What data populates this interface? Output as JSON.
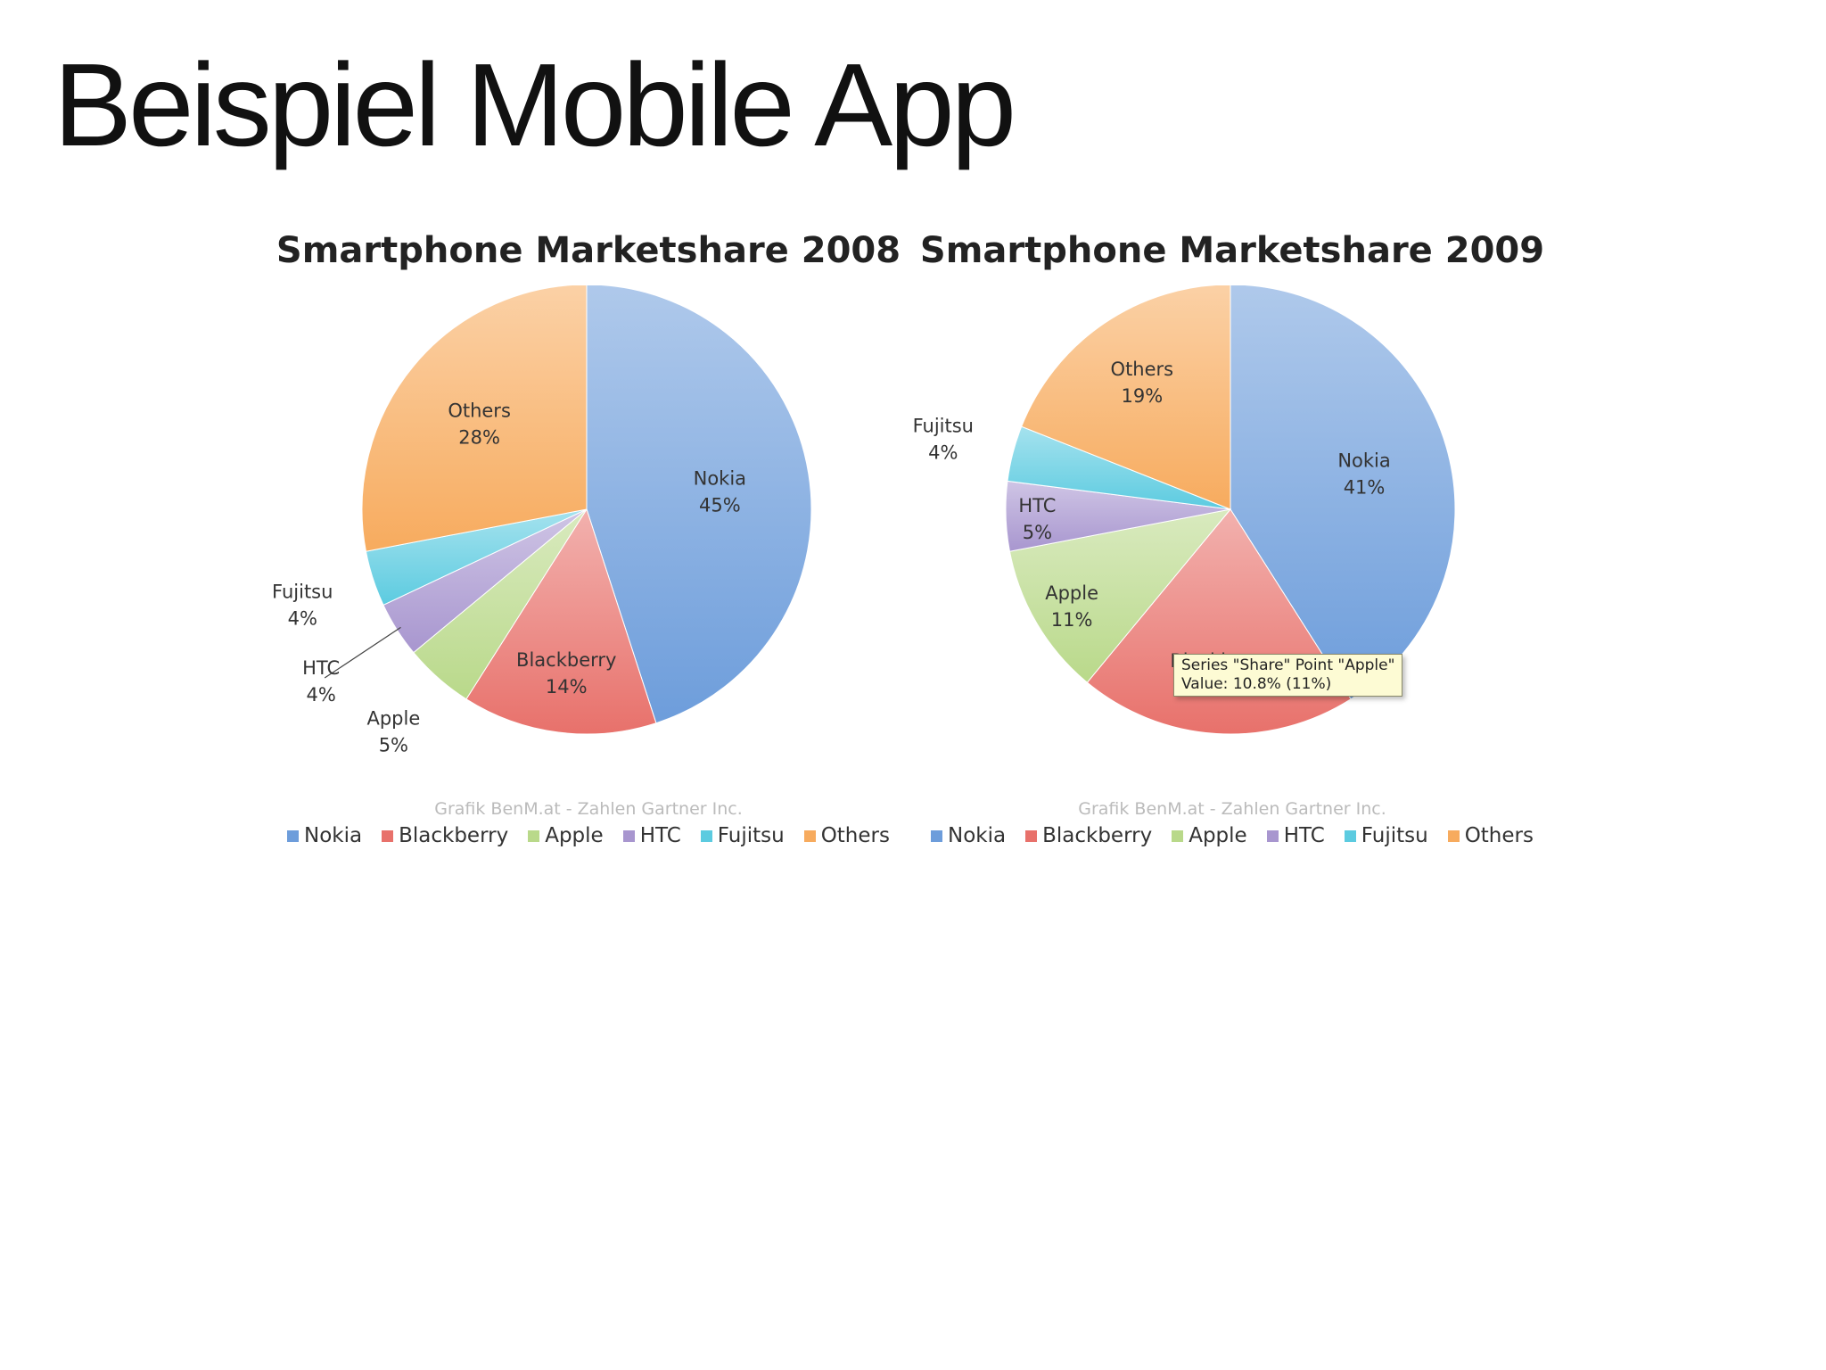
{
  "slide": {
    "title": "Beispiel Mobile App"
  },
  "chart_data": [
    {
      "type": "pie",
      "title": "Smartphone Marketshare 2008",
      "categories": [
        "Nokia",
        "Blackberry",
        "Apple",
        "HTC",
        "Fujitsu",
        "Others"
      ],
      "values": [
        45,
        14,
        5,
        4,
        4,
        28
      ],
      "labels": [
        "45%",
        "14%",
        "5%",
        "4%",
        "4%",
        "28%"
      ],
      "colors": [
        "#6d9ddb",
        "#e8716b",
        "#b9d98a",
        "#a896cf",
        "#5ccbe0",
        "#f7ab5e"
      ],
      "credit": "Grafik BenM.at - Zahlen Gartner Inc.",
      "legend": "bottom"
    },
    {
      "type": "pie",
      "title": "Smartphone Marketshare 2009",
      "categories": [
        "Nokia",
        "Blackberry",
        "Apple",
        "HTC",
        "Fujitsu",
        "Others"
      ],
      "values": [
        41,
        20,
        11,
        5,
        4,
        19
      ],
      "labels": [
        "41%",
        "20%",
        "11%",
        "5%",
        "4%",
        "19%"
      ],
      "colors": [
        "#6d9ddb",
        "#e8716b",
        "#b9d98a",
        "#a896cf",
        "#5ccbe0",
        "#f7ab5e"
      ],
      "credit": "Grafik BenM.at - Zahlen Gartner Inc.",
      "legend": "bottom",
      "tooltip": {
        "line1": "Series \"Share\" Point \"Apple\"",
        "line2": "Value: 10.8% (11%)"
      }
    }
  ]
}
